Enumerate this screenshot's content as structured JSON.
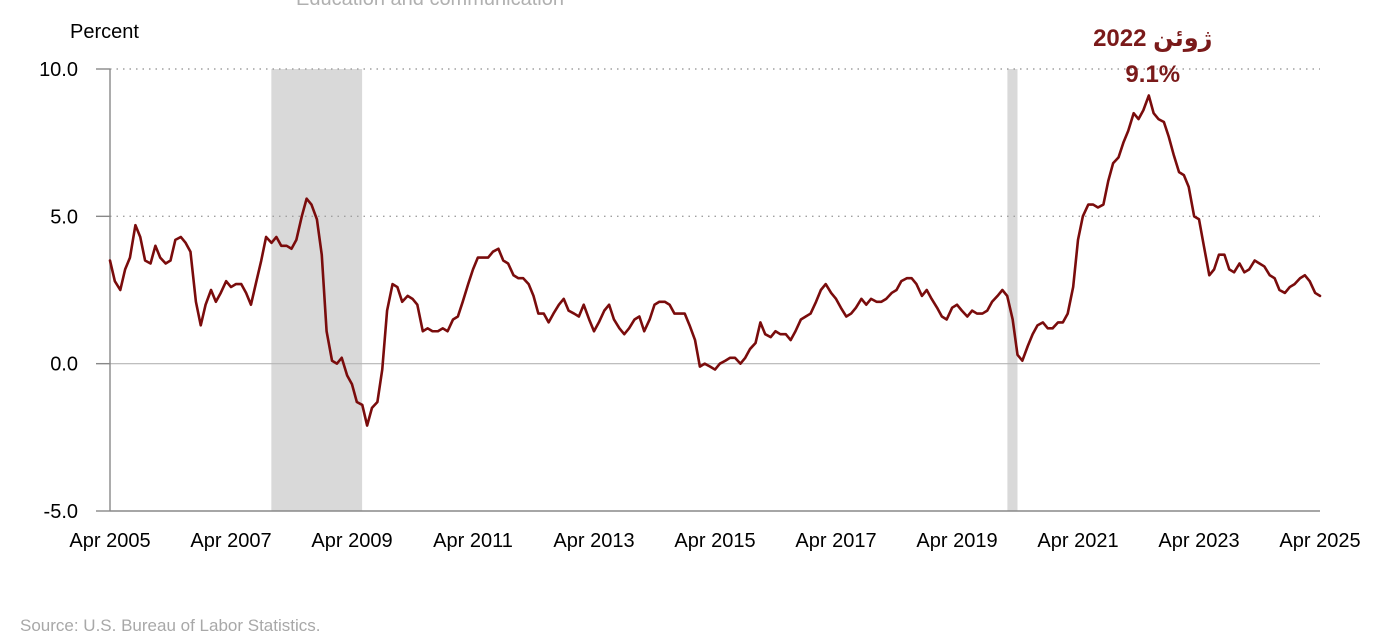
{
  "chart_data": {
    "type": "line",
    "title": "",
    "top_cut_text": "Education and communication",
    "ylabel": "Percent",
    "xlabel": "",
    "ylim": [
      -5,
      10
    ],
    "y_ticks": [
      "10.0",
      "5.0",
      "0.0",
      "-5.0"
    ],
    "y_tick_values": [
      10,
      5,
      0,
      -5
    ],
    "x_ticks": [
      "Apr 2005",
      "Apr 2007",
      "Apr 2009",
      "Apr 2011",
      "Apr 2013",
      "Apr 2015",
      "Apr 2017",
      "Apr 2019",
      "Apr 2021",
      "Apr 2023",
      "Apr 2025"
    ],
    "x_tick_years": [
      2005.25,
      2007.25,
      2009.25,
      2011.25,
      2013.25,
      2015.25,
      2017.25,
      2019.25,
      2021.25,
      2023.25,
      2025.25
    ],
    "recessions": [
      {
        "start": 2007.917,
        "end": 2009.417
      },
      {
        "start": 2020.083,
        "end": 2020.25
      }
    ],
    "grid": "horizontal dotted",
    "line_color": "#7a0c0c",
    "recession_color": "#d9d9d9",
    "series": [
      {
        "points": [
          [
            2005.25,
            3.5
          ],
          [
            2005.33,
            2.8
          ],
          [
            2005.42,
            2.5
          ],
          [
            2005.5,
            3.2
          ],
          [
            2005.58,
            3.6
          ],
          [
            2005.67,
            4.7
          ],
          [
            2005.75,
            4.3
          ],
          [
            2005.83,
            3.5
          ],
          [
            2005.92,
            3.4
          ],
          [
            2006.0,
            4.0
          ],
          [
            2006.08,
            3.6
          ],
          [
            2006.17,
            3.4
          ],
          [
            2006.25,
            3.5
          ],
          [
            2006.33,
            4.2
          ],
          [
            2006.42,
            4.3
          ],
          [
            2006.5,
            4.1
          ],
          [
            2006.58,
            3.8
          ],
          [
            2006.67,
            2.1
          ],
          [
            2006.75,
            1.3
          ],
          [
            2006.83,
            2.0
          ],
          [
            2006.92,
            2.5
          ],
          [
            2007.0,
            2.1
          ],
          [
            2007.08,
            2.4
          ],
          [
            2007.17,
            2.8
          ],
          [
            2007.25,
            2.6
          ],
          [
            2007.33,
            2.7
          ],
          [
            2007.42,
            2.7
          ],
          [
            2007.5,
            2.4
          ],
          [
            2007.58,
            2.0
          ],
          [
            2007.67,
            2.8
          ],
          [
            2007.75,
            3.5
          ],
          [
            2007.83,
            4.3
          ],
          [
            2007.92,
            4.1
          ],
          [
            2008.0,
            4.3
          ],
          [
            2008.08,
            4.0
          ],
          [
            2008.17,
            4.0
          ],
          [
            2008.25,
            3.9
          ],
          [
            2008.33,
            4.2
          ],
          [
            2008.42,
            5.0
          ],
          [
            2008.5,
            5.6
          ],
          [
            2008.58,
            5.4
          ],
          [
            2008.67,
            4.9
          ],
          [
            2008.75,
            3.7
          ],
          [
            2008.83,
            1.1
          ],
          [
            2008.92,
            0.1
          ],
          [
            2009.0,
            0.0
          ],
          [
            2009.08,
            0.2
          ],
          [
            2009.17,
            -0.4
          ],
          [
            2009.25,
            -0.7
          ],
          [
            2009.33,
            -1.3
          ],
          [
            2009.42,
            -1.4
          ],
          [
            2009.5,
            -2.1
          ],
          [
            2009.58,
            -1.5
          ],
          [
            2009.67,
            -1.3
          ],
          [
            2009.75,
            -0.2
          ],
          [
            2009.83,
            1.8
          ],
          [
            2009.92,
            2.7
          ],
          [
            2010.0,
            2.6
          ],
          [
            2010.08,
            2.1
          ],
          [
            2010.17,
            2.3
          ],
          [
            2010.25,
            2.2
          ],
          [
            2010.33,
            2.0
          ],
          [
            2010.42,
            1.1
          ],
          [
            2010.5,
            1.2
          ],
          [
            2010.58,
            1.1
          ],
          [
            2010.67,
            1.1
          ],
          [
            2010.75,
            1.2
          ],
          [
            2010.83,
            1.1
          ],
          [
            2010.92,
            1.5
          ],
          [
            2011.0,
            1.6
          ],
          [
            2011.08,
            2.1
          ],
          [
            2011.17,
            2.7
          ],
          [
            2011.25,
            3.2
          ],
          [
            2011.33,
            3.6
          ],
          [
            2011.42,
            3.6
          ],
          [
            2011.5,
            3.6
          ],
          [
            2011.58,
            3.8
          ],
          [
            2011.67,
            3.9
          ],
          [
            2011.75,
            3.5
          ],
          [
            2011.83,
            3.4
          ],
          [
            2011.92,
            3.0
          ],
          [
            2012.0,
            2.9
          ],
          [
            2012.08,
            2.9
          ],
          [
            2012.17,
            2.7
          ],
          [
            2012.25,
            2.3
          ],
          [
            2012.33,
            1.7
          ],
          [
            2012.42,
            1.7
          ],
          [
            2012.5,
            1.4
          ],
          [
            2012.58,
            1.7
          ],
          [
            2012.67,
            2.0
          ],
          [
            2012.75,
            2.2
          ],
          [
            2012.83,
            1.8
          ],
          [
            2012.92,
            1.7
          ],
          [
            2013.0,
            1.6
          ],
          [
            2013.08,
            2.0
          ],
          [
            2013.17,
            1.5
          ],
          [
            2013.25,
            1.1
          ],
          [
            2013.33,
            1.4
          ],
          [
            2013.42,
            1.8
          ],
          [
            2013.5,
            2.0
          ],
          [
            2013.58,
            1.5
          ],
          [
            2013.67,
            1.2
          ],
          [
            2013.75,
            1.0
          ],
          [
            2013.83,
            1.2
          ],
          [
            2013.92,
            1.5
          ],
          [
            2014.0,
            1.6
          ],
          [
            2014.08,
            1.1
          ],
          [
            2014.17,
            1.5
          ],
          [
            2014.25,
            2.0
          ],
          [
            2014.33,
            2.1
          ],
          [
            2014.42,
            2.1
          ],
          [
            2014.5,
            2.0
          ],
          [
            2014.58,
            1.7
          ],
          [
            2014.67,
            1.7
          ],
          [
            2014.75,
            1.7
          ],
          [
            2014.83,
            1.3
          ],
          [
            2014.92,
            0.8
          ],
          [
            2015.0,
            -0.1
          ],
          [
            2015.08,
            0.0
          ],
          [
            2015.17,
            -0.1
          ],
          [
            2015.25,
            -0.2
          ],
          [
            2015.33,
            0.0
          ],
          [
            2015.42,
            0.1
          ],
          [
            2015.5,
            0.2
          ],
          [
            2015.58,
            0.2
          ],
          [
            2015.67,
            0.0
          ],
          [
            2015.75,
            0.2
          ],
          [
            2015.83,
            0.5
          ],
          [
            2015.92,
            0.7
          ],
          [
            2016.0,
            1.4
          ],
          [
            2016.08,
            1.0
          ],
          [
            2016.17,
            0.9
          ],
          [
            2016.25,
            1.1
          ],
          [
            2016.33,
            1.0
          ],
          [
            2016.42,
            1.0
          ],
          [
            2016.5,
            0.8
          ],
          [
            2016.58,
            1.1
          ],
          [
            2016.67,
            1.5
          ],
          [
            2016.75,
            1.6
          ],
          [
            2016.83,
            1.7
          ],
          [
            2016.92,
            2.1
          ],
          [
            2017.0,
            2.5
          ],
          [
            2017.08,
            2.7
          ],
          [
            2017.17,
            2.4
          ],
          [
            2017.25,
            2.2
          ],
          [
            2017.33,
            1.9
          ],
          [
            2017.42,
            1.6
          ],
          [
            2017.5,
            1.7
          ],
          [
            2017.58,
            1.9
          ],
          [
            2017.67,
            2.2
          ],
          [
            2017.75,
            2.0
          ],
          [
            2017.83,
            2.2
          ],
          [
            2017.92,
            2.1
          ],
          [
            2018.0,
            2.1
          ],
          [
            2018.08,
            2.2
          ],
          [
            2018.17,
            2.4
          ],
          [
            2018.25,
            2.5
          ],
          [
            2018.33,
            2.8
          ],
          [
            2018.42,
            2.9
          ],
          [
            2018.5,
            2.9
          ],
          [
            2018.58,
            2.7
          ],
          [
            2018.67,
            2.3
          ],
          [
            2018.75,
            2.5
          ],
          [
            2018.83,
            2.2
          ],
          [
            2018.92,
            1.9
          ],
          [
            2019.0,
            1.6
          ],
          [
            2019.08,
            1.5
          ],
          [
            2019.17,
            1.9
          ],
          [
            2019.25,
            2.0
          ],
          [
            2019.33,
            1.8
          ],
          [
            2019.42,
            1.6
          ],
          [
            2019.5,
            1.8
          ],
          [
            2019.58,
            1.7
          ],
          [
            2019.67,
            1.7
          ],
          [
            2019.75,
            1.8
          ],
          [
            2019.83,
            2.1
          ],
          [
            2019.92,
            2.3
          ],
          [
            2020.0,
            2.5
          ],
          [
            2020.08,
            2.3
          ],
          [
            2020.17,
            1.5
          ],
          [
            2020.25,
            0.3
          ],
          [
            2020.33,
            0.1
          ],
          [
            2020.42,
            0.6
          ],
          [
            2020.5,
            1.0
          ],
          [
            2020.58,
            1.3
          ],
          [
            2020.67,
            1.4
          ],
          [
            2020.75,
            1.2
          ],
          [
            2020.83,
            1.2
          ],
          [
            2020.92,
            1.4
          ],
          [
            2021.0,
            1.4
          ],
          [
            2021.08,
            1.7
          ],
          [
            2021.17,
            2.6
          ],
          [
            2021.25,
            4.2
          ],
          [
            2021.33,
            5.0
          ],
          [
            2021.42,
            5.4
          ],
          [
            2021.5,
            5.4
          ],
          [
            2021.58,
            5.3
          ],
          [
            2021.67,
            5.4
          ],
          [
            2021.75,
            6.2
          ],
          [
            2021.83,
            6.8
          ],
          [
            2021.92,
            7.0
          ],
          [
            2022.0,
            7.5
          ],
          [
            2022.08,
            7.9
          ],
          [
            2022.17,
            8.5
          ],
          [
            2022.25,
            8.3
          ],
          [
            2022.33,
            8.6
          ],
          [
            2022.42,
            9.1
          ],
          [
            2022.5,
            8.5
          ],
          [
            2022.58,
            8.3
          ],
          [
            2022.67,
            8.2
          ],
          [
            2022.75,
            7.7
          ],
          [
            2022.83,
            7.1
          ],
          [
            2022.92,
            6.5
          ],
          [
            2023.0,
            6.4
          ],
          [
            2023.08,
            6.0
          ],
          [
            2023.17,
            5.0
          ],
          [
            2023.25,
            4.9
          ],
          [
            2023.33,
            4.0
          ],
          [
            2023.42,
            3.0
          ],
          [
            2023.5,
            3.2
          ],
          [
            2023.58,
            3.7
          ],
          [
            2023.67,
            3.7
          ],
          [
            2023.75,
            3.2
          ],
          [
            2023.83,
            3.1
          ],
          [
            2023.92,
            3.4
          ],
          [
            2024.0,
            3.1
          ],
          [
            2024.08,
            3.2
          ],
          [
            2024.17,
            3.5
          ],
          [
            2024.25,
            3.4
          ],
          [
            2024.33,
            3.3
          ],
          [
            2024.42,
            3.0
          ],
          [
            2024.5,
            2.9
          ],
          [
            2024.58,
            2.5
          ],
          [
            2024.67,
            2.4
          ],
          [
            2024.75,
            2.6
          ],
          [
            2024.83,
            2.7
          ],
          [
            2024.92,
            2.9
          ],
          [
            2025.0,
            3.0
          ],
          [
            2025.08,
            2.8
          ],
          [
            2025.17,
            2.4
          ],
          [
            2025.25,
            2.3
          ]
        ]
      }
    ],
    "annotation": {
      "line1": "ژوئن 2022",
      "line2": "9.1%",
      "x": 2022.42,
      "y": 9.1
    },
    "source": "Source: U.S. Bureau of Labor Statistics."
  }
}
